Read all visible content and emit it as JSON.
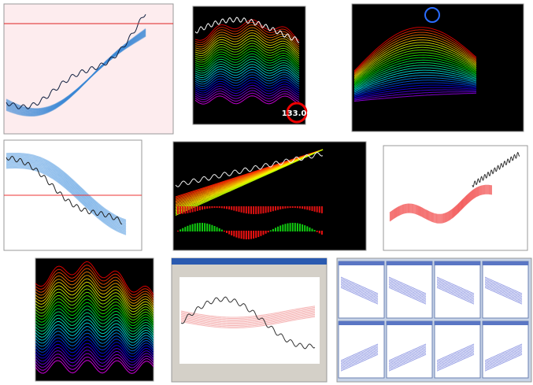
{
  "tiles": [
    {
      "callout": "133.00"
    }
  ]
}
